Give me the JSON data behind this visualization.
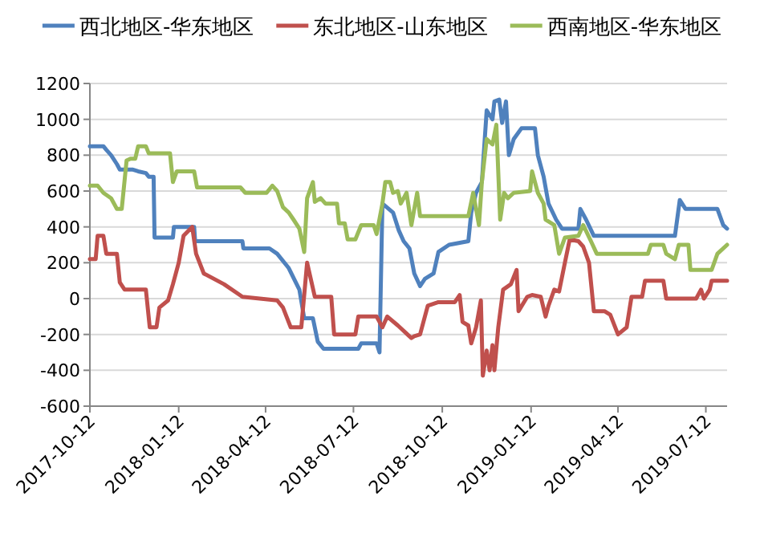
{
  "chart_data": {
    "type": "line",
    "legend": "top",
    "grid": "y",
    "xlim": [
      "2017-10-12",
      "2019-08-03"
    ],
    "xticks": [
      "2017-10-12",
      "2018-01-12",
      "2018-04-12",
      "2018-07-12",
      "2018-10-12",
      "2019-01-12",
      "2019-04-12",
      "2019-07-12"
    ],
    "ylim": [
      -600,
      1200
    ],
    "yticks": [
      -600,
      -400,
      -200,
      0,
      200,
      400,
      600,
      800,
      1000,
      1200
    ],
    "series": [
      {
        "name": "西北地区-华东地区",
        "color": "#4f81bd",
        "x": [
          "2017-10-12",
          "2017-10-26",
          "2017-10-29",
          "2017-11-03",
          "2017-11-09",
          "2017-11-12",
          "2017-11-25",
          "2017-12-01",
          "2017-12-09",
          "2017-12-12",
          "2017-12-17",
          "2017-12-18",
          "2018-01-06",
          "2018-01-07",
          "2018-01-28",
          "2018-01-29",
          "2018-03-19",
          "2018-03-20",
          "2018-04-16",
          "2018-04-24",
          "2018-05-06",
          "2018-05-17",
          "2018-05-22",
          "2018-05-31",
          "2018-06-05",
          "2018-06-11",
          "2018-07-17",
          "2018-07-20",
          "2018-08-05",
          "2018-08-08",
          "2018-08-11",
          "2018-08-22",
          "2018-08-28",
          "2018-09-02",
          "2018-09-08",
          "2018-09-13",
          "2018-09-19",
          "2018-09-24",
          "2018-10-03",
          "2018-10-08",
          "2018-10-19",
          "2018-11-08",
          "2018-11-11",
          "2018-11-16",
          "2018-11-22",
          "2018-11-27",
          "2018-12-03",
          "2018-12-05",
          "2018-12-10",
          "2018-12-13",
          "2018-12-17",
          "2018-12-20",
          "2018-12-25",
          "2019-01-02",
          "2019-01-16",
          "2019-01-19",
          "2019-01-25",
          "2019-01-30",
          "2019-02-07",
          "2019-02-13",
          "2019-03-02",
          "2019-03-04",
          "2019-03-10",
          "2019-03-18",
          "2019-06-10",
          "2019-06-15",
          "2019-06-21",
          "2019-07-24",
          "2019-07-30",
          "2019-08-03"
        ],
        "values": [
          850,
          850,
          830,
          800,
          750,
          720,
          720,
          710,
          700,
          680,
          680,
          340,
          340,
          400,
          400,
          320,
          320,
          280,
          280,
          250,
          170,
          50,
          -110,
          -110,
          -240,
          -280,
          -280,
          -250,
          -250,
          -300,
          530,
          480,
          380,
          320,
          280,
          140,
          70,
          110,
          140,
          260,
          300,
          320,
          480,
          590,
          650,
          1050,
          1000,
          1100,
          1110,
          980,
          1100,
          800,
          890,
          950,
          950,
          800,
          680,
          530,
          440,
          390,
          390,
          500,
          440,
          350,
          350,
          550,
          500,
          500,
          410,
          390
        ]
      },
      {
        "name": "东北地区-山东地区",
        "color": "#c0504d",
        "x": [
          "2017-10-12",
          "2017-10-18",
          "2017-10-20",
          "2017-10-26",
          "2017-10-29",
          "2017-11-09",
          "2017-11-12",
          "2017-11-17",
          "2017-12-09",
          "2017-12-13",
          "2017-12-20",
          "2017-12-23",
          "2018-01-01",
          "2018-01-06",
          "2018-01-12",
          "2018-01-17",
          "2018-01-26",
          "2018-01-30",
          "2018-02-07",
          "2018-02-28",
          "2018-03-19",
          "2018-04-24",
          "2018-04-30",
          "2018-05-08",
          "2018-05-19",
          "2018-05-25",
          "2018-06-02",
          "2018-06-19",
          "2018-06-22",
          "2018-07-14",
          "2018-07-17",
          "2018-08-05",
          "2018-08-11",
          "2018-08-16",
          "2018-08-27",
          "2018-09-10",
          "2018-09-13",
          "2018-09-19",
          "2018-09-27",
          "2018-10-08",
          "2018-10-25",
          "2018-10-30",
          "2018-11-02",
          "2018-11-08",
          "2018-11-11",
          "2018-11-16",
          "2018-11-21",
          "2018-11-23",
          "2018-11-27",
          "2018-11-30",
          "2018-12-03",
          "2018-12-05",
          "2018-12-09",
          "2018-12-14",
          "2018-12-22",
          "2018-12-28",
          "2018-12-30",
          "2019-01-08",
          "2019-01-13",
          "2019-01-22",
          "2019-01-27",
          "2019-01-30",
          "2019-02-05",
          "2019-02-10",
          "2019-02-16",
          "2019-02-21",
          "2019-03-02",
          "2019-03-07",
          "2019-03-13",
          "2019-03-18",
          "2019-03-29",
          "2019-04-04",
          "2019-04-12",
          "2019-04-21",
          "2019-04-26",
          "2019-05-07",
          "2019-05-10",
          "2019-05-29",
          "2019-06-01",
          "2019-07-02",
          "2019-07-07",
          "2019-07-10",
          "2019-07-16",
          "2019-07-18",
          "2019-08-03"
        ],
        "values": [
          220,
          220,
          350,
          350,
          250,
          250,
          90,
          50,
          50,
          -160,
          -160,
          -50,
          -10,
          80,
          200,
          350,
          400,
          250,
          140,
          80,
          10,
          -10,
          -50,
          -160,
          -160,
          200,
          10,
          10,
          -200,
          -200,
          -100,
          -100,
          -160,
          -100,
          -150,
          -220,
          -210,
          -200,
          -40,
          -20,
          -20,
          20,
          -130,
          -150,
          -250,
          -160,
          -10,
          -430,
          -290,
          -400,
          -260,
          -400,
          -160,
          50,
          80,
          160,
          -70,
          10,
          20,
          10,
          -100,
          -40,
          50,
          40,
          200,
          330,
          320,
          290,
          200,
          -70,
          -70,
          -90,
          -200,
          -160,
          10,
          10,
          100,
          100,
          0,
          0,
          50,
          0,
          50,
          100,
          100
        ]
      },
      {
        "name": "西南地区-华东地区",
        "color": "#9bbb59",
        "x": [
          "2017-10-12",
          "2017-10-20",
          "2017-10-26",
          "2017-11-03",
          "2017-11-09",
          "2017-11-14",
          "2017-11-19",
          "2017-11-23",
          "2017-11-28",
          "2017-12-01",
          "2017-12-09",
          "2017-12-12",
          "2018-01-03",
          "2018-01-06",
          "2018-01-10",
          "2018-01-28",
          "2018-01-31",
          "2018-03-17",
          "2018-03-22",
          "2018-04-13",
          "2018-04-19",
          "2018-04-24",
          "2018-04-30",
          "2018-05-06",
          "2018-05-11",
          "2018-05-17",
          "2018-05-22",
          "2018-05-25",
          "2018-05-31",
          "2018-06-02",
          "2018-06-08",
          "2018-06-13",
          "2018-06-25",
          "2018-06-27",
          "2018-07-03",
          "2018-07-06",
          "2018-07-14",
          "2018-07-20",
          "2018-08-02",
          "2018-08-05",
          "2018-08-11",
          "2018-08-14",
          "2018-08-19",
          "2018-08-22",
          "2018-08-27",
          "2018-08-30",
          "2018-09-05",
          "2018-09-10",
          "2018-09-16",
          "2018-09-19",
          "2018-11-08",
          "2018-11-13",
          "2018-11-19",
          "2018-11-22",
          "2018-11-27",
          "2018-12-03",
          "2018-12-07",
          "2018-12-11",
          "2018-12-15",
          "2018-12-19",
          "2018-12-25",
          "2019-01-11",
          "2019-01-13",
          "2019-01-19",
          "2019-01-25",
          "2019-01-27",
          "2019-02-05",
          "2019-02-10",
          "2019-02-16",
          "2019-03-02",
          "2019-03-07",
          "2019-03-15",
          "2019-03-21",
          "2019-05-13",
          "2019-05-16",
          "2019-05-29",
          "2019-06-01",
          "2019-06-10",
          "2019-06-14",
          "2019-06-24",
          "2019-06-26",
          "2019-07-18",
          "2019-07-24",
          "2019-08-03"
        ],
        "values": [
          630,
          630,
          590,
          560,
          500,
          500,
          770,
          780,
          780,
          850,
          850,
          810,
          810,
          650,
          710,
          710,
          620,
          620,
          590,
          590,
          630,
          600,
          510,
          480,
          440,
          390,
          260,
          560,
          650,
          540,
          560,
          530,
          530,
          420,
          420,
          330,
          330,
          410,
          410,
          360,
          530,
          650,
          650,
          590,
          600,
          530,
          590,
          410,
          590,
          460,
          460,
          590,
          410,
          650,
          890,
          860,
          970,
          440,
          590,
          560,
          590,
          600,
          710,
          590,
          530,
          440,
          410,
          250,
          340,
          350,
          410,
          320,
          250,
          250,
          300,
          300,
          250,
          220,
          300,
          300,
          160,
          160,
          250,
          300
        ]
      }
    ]
  }
}
